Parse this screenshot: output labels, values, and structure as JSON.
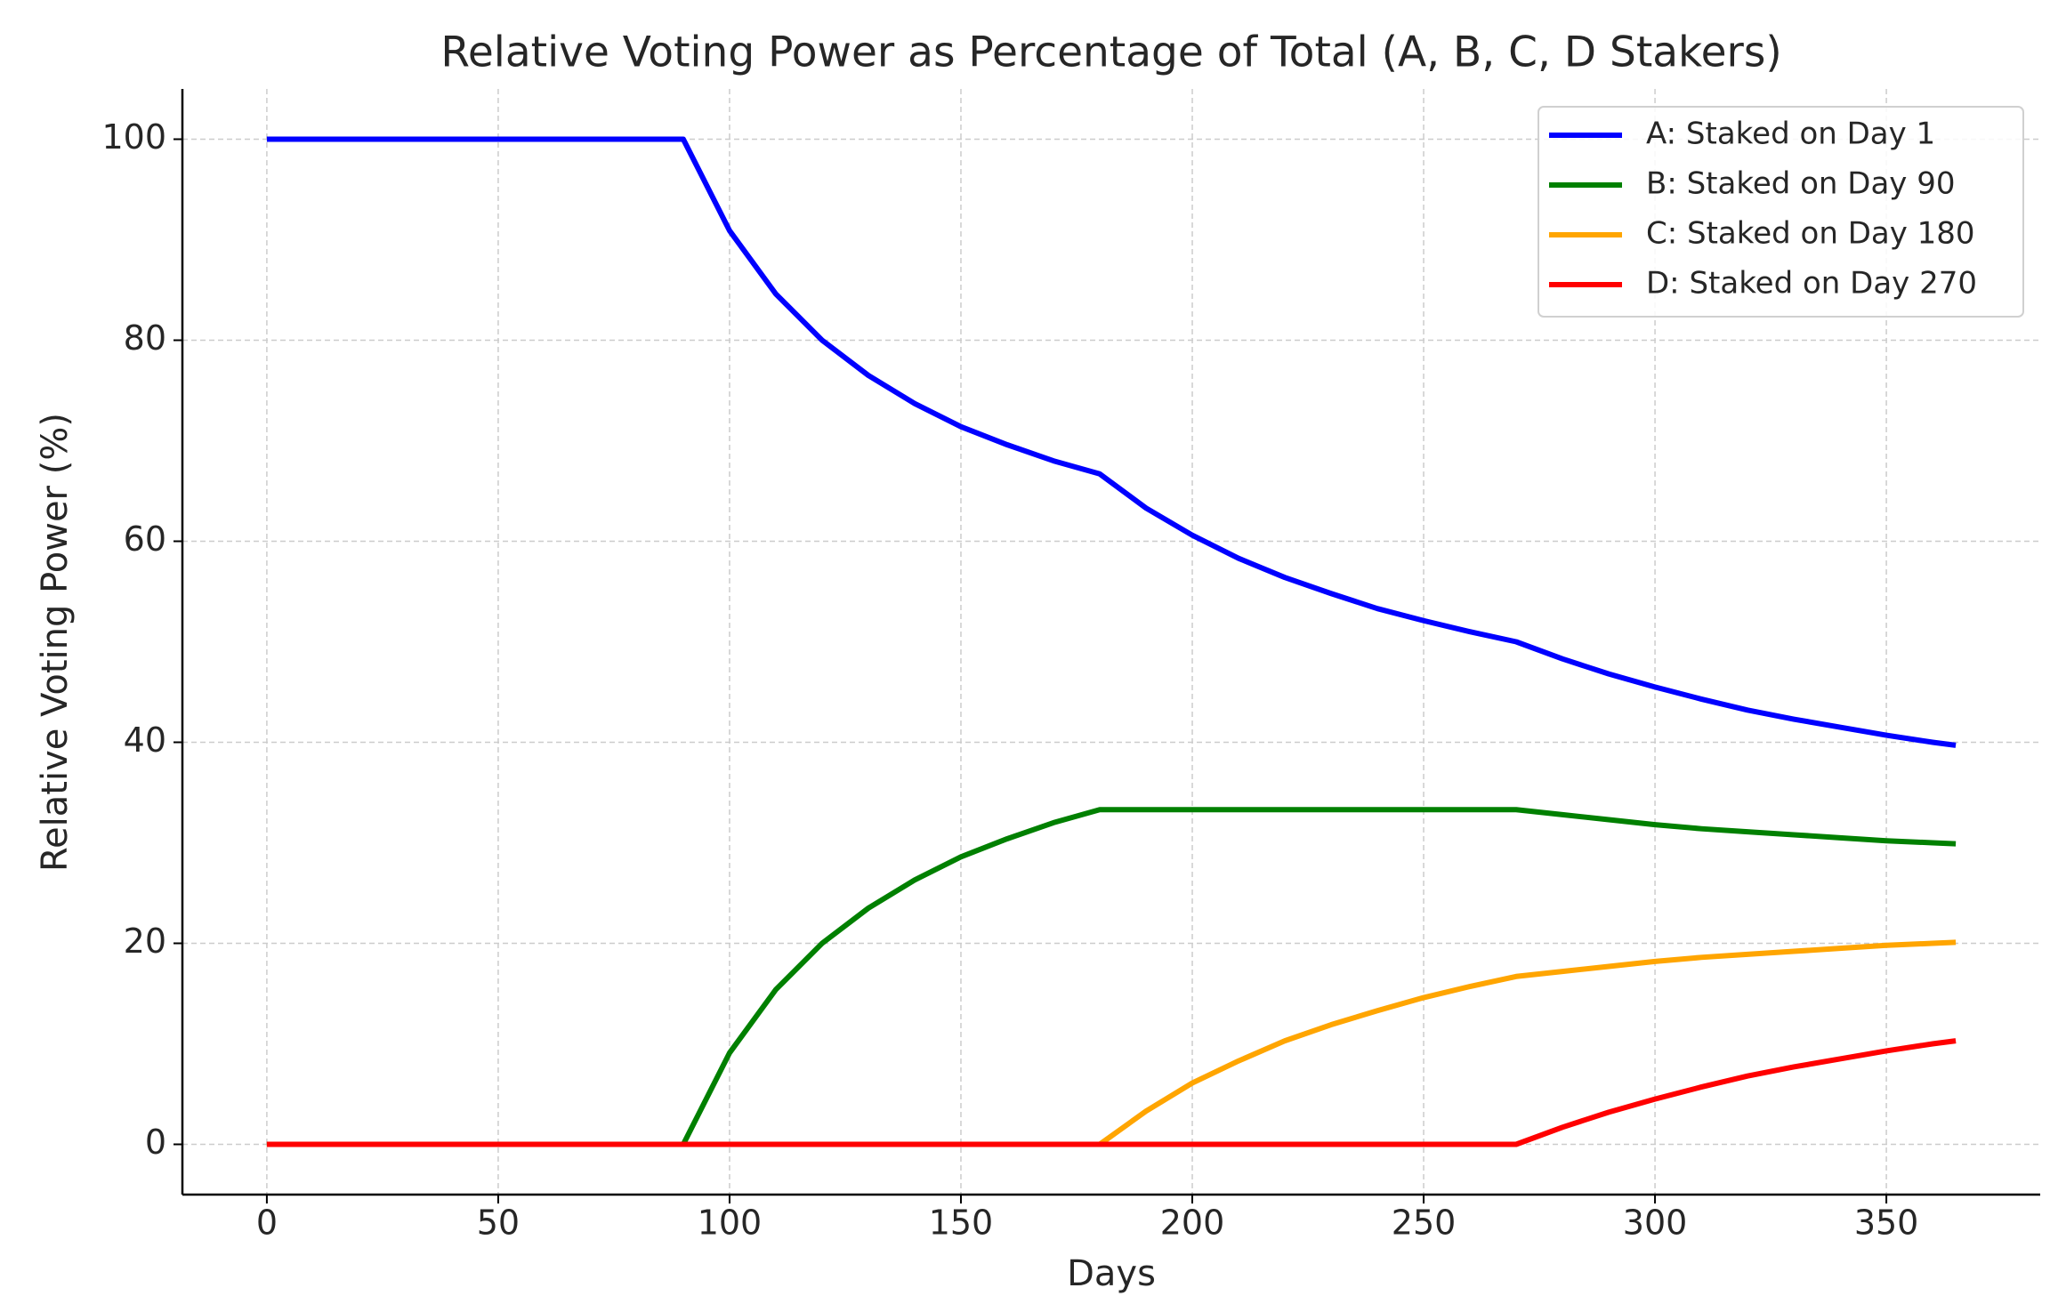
{
  "chart_data": {
    "type": "line",
    "title": "Relative Voting Power as Percentage of Total (A, B, C, D Stakers)",
    "x_label": "Days",
    "y_label": "Relative Voting Power (%)",
    "x": [
      0,
      10,
      20,
      30,
      40,
      50,
      60,
      70,
      80,
      90,
      100,
      110,
      120,
      130,
      140,
      150,
      160,
      170,
      180,
      190,
      200,
      210,
      220,
      230,
      240,
      250,
      260,
      270,
      280,
      290,
      300,
      310,
      320,
      330,
      340,
      350,
      360,
      365
    ],
    "series": [
      {
        "name": "A: Staked on Day 1",
        "color": "#0000ff",
        "values": [
          100,
          100,
          100,
          100,
          100,
          100,
          100,
          100,
          100,
          100,
          90.9,
          84.6,
          80.0,
          76.5,
          73.7,
          71.4,
          69.6,
          68.0,
          66.7,
          63.3,
          60.6,
          58.3,
          56.4,
          54.8,
          53.3,
          52.1,
          51.0,
          50.0,
          48.3,
          46.8,
          45.5,
          44.3,
          43.2,
          42.3,
          41.5,
          40.7,
          40.0,
          39.7
        ]
      },
      {
        "name": "B: Staked on Day 90",
        "color": "#008000",
        "values": [
          0,
          0,
          0,
          0,
          0,
          0,
          0,
          0,
          0,
          0,
          9.1,
          15.4,
          20.0,
          23.5,
          26.3,
          28.6,
          30.4,
          32.0,
          33.3,
          33.3,
          33.3,
          33.3,
          33.3,
          33.3,
          33.3,
          33.3,
          33.3,
          33.3,
          32.8,
          32.3,
          31.8,
          31.4,
          31.1,
          30.8,
          30.5,
          30.2,
          30.0,
          29.9
        ]
      },
      {
        "name": "C: Staked on Day 180",
        "color": "#ffa500",
        "values": [
          0,
          0,
          0,
          0,
          0,
          0,
          0,
          0,
          0,
          0,
          0,
          0,
          0,
          0,
          0,
          0,
          0,
          0,
          0,
          3.3,
          6.1,
          8.3,
          10.3,
          11.9,
          13.3,
          14.6,
          15.7,
          16.7,
          17.2,
          17.7,
          18.2,
          18.6,
          18.9,
          19.2,
          19.5,
          19.8,
          20.0,
          20.1
        ]
      },
      {
        "name": "D: Staked on Day 270",
        "color": "#ff0000",
        "values": [
          0,
          0,
          0,
          0,
          0,
          0,
          0,
          0,
          0,
          0,
          0,
          0,
          0,
          0,
          0,
          0,
          0,
          0,
          0,
          0,
          0,
          0,
          0,
          0,
          0,
          0,
          0,
          0,
          1.7,
          3.2,
          4.5,
          5.7,
          6.8,
          7.7,
          8.5,
          9.3,
          10.0,
          10.3
        ]
      }
    ],
    "xlim": [
      -18.25,
      383.25
    ],
    "ylim": [
      -5,
      105
    ],
    "xticks": [
      0,
      50,
      100,
      150,
      200,
      250,
      300,
      350
    ],
    "yticks": [
      0,
      20,
      40,
      60,
      80,
      100
    ],
    "grid": true,
    "legend": "upper right"
  }
}
